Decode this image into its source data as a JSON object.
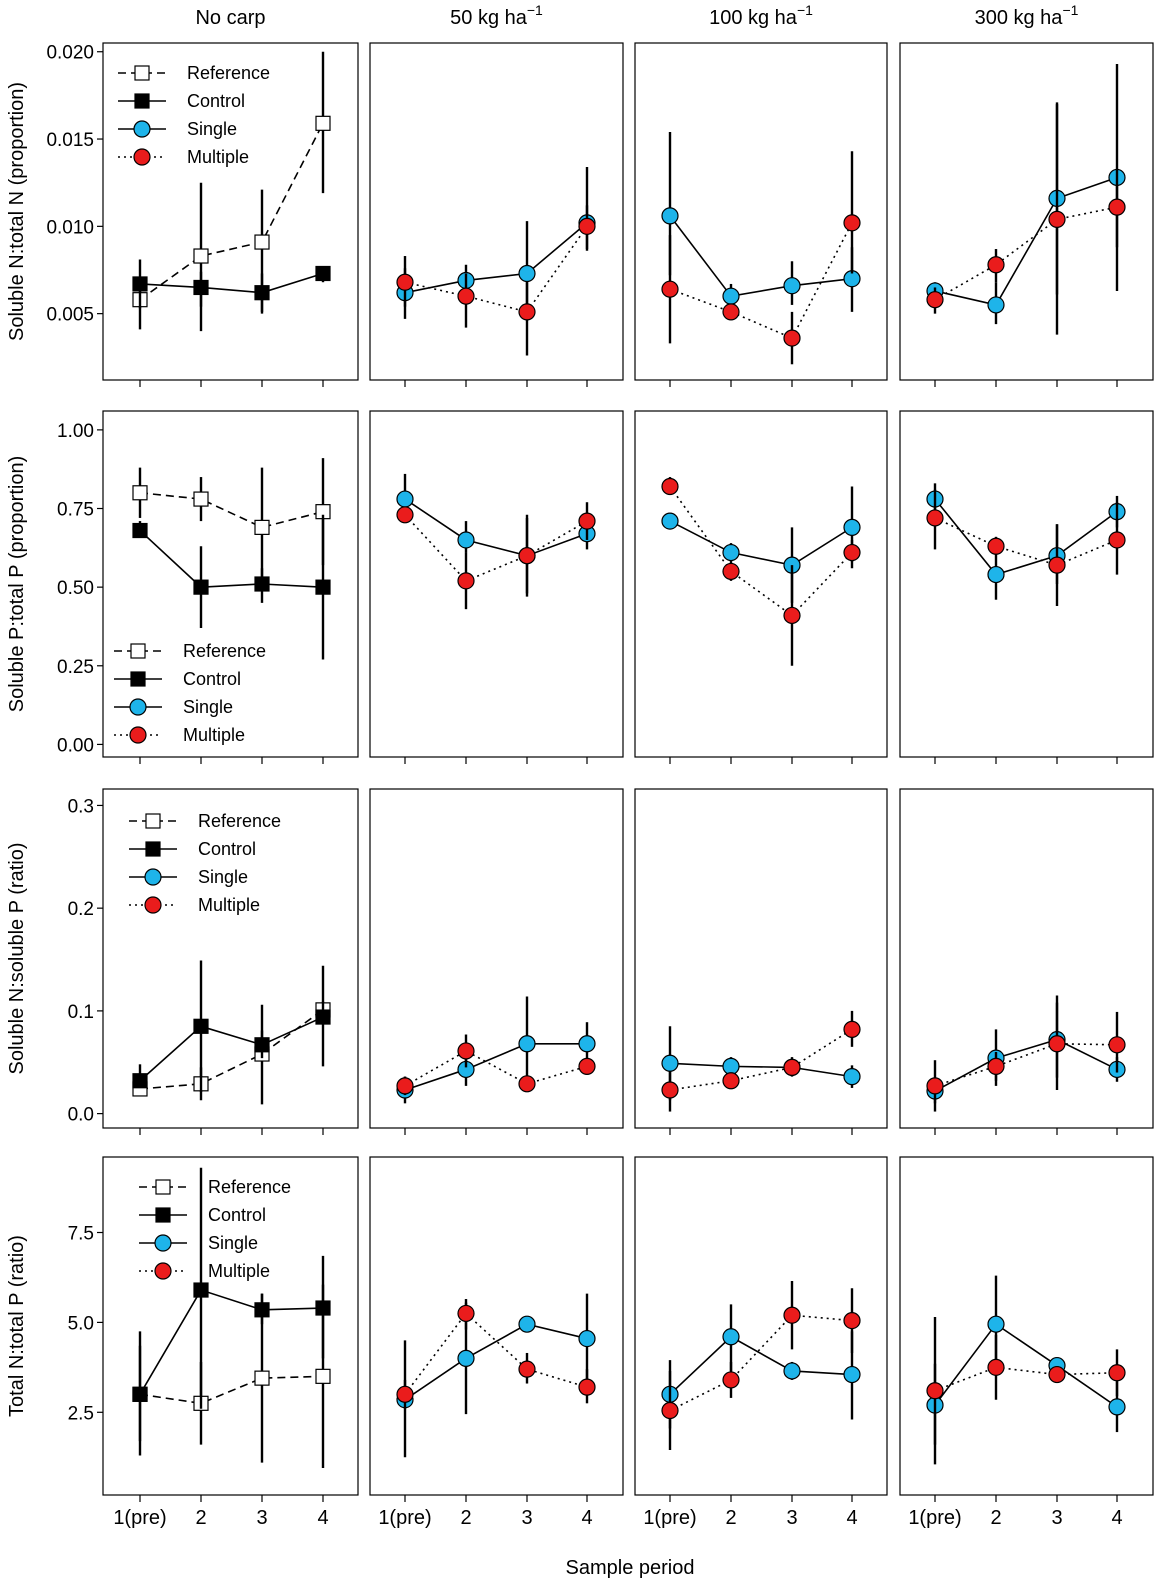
{
  "figure": {
    "xlabel": "Sample period",
    "x_categories": [
      "1(pre)",
      "2",
      "3",
      "4"
    ],
    "columns": [
      "No carp",
      "50 kg ha",
      "100 kg ha",
      "300 kg ha"
    ],
    "column_superscript": "−1",
    "legend": [
      "Reference",
      "Control",
      "Single",
      "Multiple"
    ]
  },
  "series_style": {
    "Reference": {
      "marker": "square",
      "fill": "#ffffff",
      "line": "dashed"
    },
    "Control": {
      "marker": "square",
      "fill": "#000000",
      "line": "solid"
    },
    "Single": {
      "marker": "circle",
      "fill": "#1eb4ea",
      "line": "solid"
    },
    "Multiple": {
      "marker": "circle",
      "fill": "#ea1c1c",
      "line": "dotted"
    }
  },
  "chart_data": [
    {
      "type": "line",
      "ylabel": "Soluble N:total N (proportion)",
      "ylim": [
        0.0012,
        0.0205
      ],
      "yticks": [
        0.005,
        0.01,
        0.015,
        0.02
      ],
      "ytick_labels": [
        "0.005",
        "0.010",
        "0.015",
        "0.020"
      ],
      "legend_position": "top-left",
      "panels": [
        {
          "column": "No carp",
          "series": [
            {
              "name": "Reference",
              "y": [
                0.0058,
                0.0083,
                0.0091,
                0.0159
              ],
              "low": [
                0.0053,
                0.004,
                0.005,
                0.0119
              ],
              "high": [
                0.007,
                0.0125,
                0.0121,
                0.02
              ]
            },
            {
              "name": "Control",
              "y": [
                0.0067,
                0.0065,
                0.0062,
                0.0073
              ],
              "low": [
                0.0041,
                0.0054,
                0.0051,
                0.0068
              ],
              "high": [
                0.0081,
                0.0074,
                0.0073,
                0.0077
              ]
            }
          ]
        },
        {
          "column": "50 kg ha",
          "series": [
            {
              "name": "Single",
              "y": [
                0.0062,
                0.0069,
                0.0073,
                0.0102
              ],
              "low": [
                0.0047,
                0.0061,
                0.0051,
                0.0086
              ],
              "high": [
                0.0076,
                0.0078,
                0.0103,
                0.0134
              ]
            },
            {
              "name": "Multiple",
              "y": [
                0.0068,
                0.006,
                0.0051,
                0.01
              ],
              "low": [
                0.0054,
                0.0042,
                0.0026,
                0.0087
              ],
              "high": [
                0.0083,
                0.0073,
                0.0068,
                0.0112
              ]
            }
          ]
        },
        {
          "column": "100 kg ha",
          "series": [
            {
              "name": "Single",
              "y": [
                0.0106,
                0.006,
                0.0066,
                0.007
              ],
              "low": [
                0.0072,
                0.0055,
                0.0055,
                0.0051
              ],
              "high": [
                0.0154,
                0.0067,
                0.008,
                0.0088
              ]
            },
            {
              "name": "Multiple",
              "y": [
                0.0064,
                0.0051,
                0.0036,
                0.0102
              ],
              "low": [
                0.0033,
                0.0047,
                0.0021,
                0.0073
              ],
              "high": [
                0.0095,
                0.0055,
                0.0051,
                0.0143
              ]
            }
          ]
        },
        {
          "column": "300 kg ha",
          "series": [
            {
              "name": "Single",
              "y": [
                0.0063,
                0.0055,
                0.0116,
                0.0128
              ],
              "low": [
                0.0055,
                0.0044,
                0.0061,
                0.0063
              ],
              "high": [
                0.0068,
                0.0068,
                0.017,
                0.0193
              ]
            },
            {
              "name": "Multiple",
              "y": [
                0.0058,
                0.0078,
                0.0104,
                0.0111
              ],
              "low": [
                0.005,
                0.0068,
                0.0038,
                0.0088
              ],
              "high": [
                0.0065,
                0.0087,
                0.0171,
                0.0133
              ]
            }
          ]
        }
      ]
    },
    {
      "type": "line",
      "ylabel": "Soluble P:total P (proportion)",
      "ylim": [
        -0.04,
        1.06
      ],
      "yticks": [
        0,
        0.25,
        0.5,
        0.75,
        1.0
      ],
      "ytick_labels": [
        "0.00",
        "0.25",
        "0.50",
        "0.75",
        "1.00"
      ],
      "legend_position": "bottom-left",
      "panels": [
        {
          "column": "No carp",
          "series": [
            {
              "name": "Reference",
              "y": [
                0.8,
                0.78,
                0.69,
                0.74
              ],
              "low": [
                0.72,
                0.71,
                0.51,
                0.57
              ],
              "high": [
                0.88,
                0.85,
                0.88,
                0.91
              ]
            },
            {
              "name": "Control",
              "y": [
                0.68,
                0.5,
                0.51,
                0.5
              ],
              "low": [
                0.66,
                0.37,
                0.45,
                0.27
              ],
              "high": [
                0.71,
                0.63,
                0.56,
                0.73
              ]
            }
          ]
        },
        {
          "column": "50 kg ha",
          "series": [
            {
              "name": "Single",
              "y": [
                0.78,
                0.65,
                0.6,
                0.67
              ],
              "low": [
                0.71,
                0.61,
                0.47,
                0.62
              ],
              "high": [
                0.86,
                0.71,
                0.72,
                0.72
              ]
            },
            {
              "name": "Multiple",
              "y": [
                0.73,
                0.52,
                0.6,
                0.71
              ],
              "low": [
                0.71,
                0.43,
                0.48,
                0.65
              ],
              "high": [
                0.75,
                0.61,
                0.73,
                0.77
              ]
            }
          ]
        },
        {
          "column": "100 kg ha",
          "series": [
            {
              "name": "Single",
              "y": [
                0.71,
                0.61,
                0.57,
                0.69
              ],
              "low": [
                0.71,
                0.58,
                0.45,
                0.56
              ],
              "high": [
                0.71,
                0.64,
                0.69,
                0.82
              ]
            },
            {
              "name": "Multiple",
              "y": [
                0.82,
                0.55,
                0.41,
                0.61
              ],
              "low": [
                0.8,
                0.52,
                0.25,
                0.58
              ],
              "high": [
                0.85,
                0.58,
                0.57,
                0.65
              ]
            }
          ]
        },
        {
          "column": "300 kg ha",
          "series": [
            {
              "name": "Single",
              "y": [
                0.78,
                0.54,
                0.6,
                0.74
              ],
              "low": [
                0.72,
                0.46,
                0.51,
                0.69
              ],
              "high": [
                0.83,
                0.61,
                0.7,
                0.79
              ]
            },
            {
              "name": "Multiple",
              "y": [
                0.72,
                0.63,
                0.57,
                0.65
              ],
              "low": [
                0.62,
                0.61,
                0.44,
                0.54
              ],
              "high": [
                0.81,
                0.66,
                0.7,
                0.77
              ]
            }
          ]
        }
      ]
    },
    {
      "type": "line",
      "ylabel": "Soluble N:soluble P (ratio)",
      "ylim": [
        -0.014,
        0.316
      ],
      "yticks": [
        0,
        0.1,
        0.2,
        0.3
      ],
      "ytick_labels": [
        "0.0",
        "0.1",
        "0.2",
        "0.3"
      ],
      "legend_position": "top-left",
      "panels": [
        {
          "column": "No carp",
          "series": [
            {
              "name": "Reference",
              "y": [
                0.024,
                0.029,
                0.058,
                0.101
              ],
              "low": [
                0.019,
                0.013,
                0.009,
                0.094
              ],
              "high": [
                0.03,
                0.045,
                0.106,
                0.109
              ]
            },
            {
              "name": "Control",
              "y": [
                0.032,
                0.085,
                0.067,
                0.094
              ],
              "low": [
                0.025,
                0.021,
                0.054,
                0.046
              ],
              "high": [
                0.048,
                0.149,
                0.081,
                0.144
              ]
            }
          ]
        },
        {
          "column": "50 kg ha",
          "series": [
            {
              "name": "Single",
              "y": [
                0.023,
                0.043,
                0.068,
                0.068
              ],
              "low": [
                0.01,
                0.027,
                0.023,
                0.048
              ],
              "high": [
                0.036,
                0.06,
                0.114,
                0.089
              ]
            },
            {
              "name": "Multiple",
              "y": [
                0.027,
                0.061,
                0.029,
                0.046
              ],
              "low": [
                0.018,
                0.045,
                0.029,
                0.046
              ],
              "high": [
                0.036,
                0.077,
                0.029,
                0.046
              ]
            }
          ]
        },
        {
          "column": "100 kg ha",
          "series": [
            {
              "name": "Single",
              "y": [
                0.049,
                0.046,
                0.045,
                0.036
              ],
              "low": [
                0.013,
                0.038,
                0.036,
                0.025
              ],
              "high": [
                0.085,
                0.055,
                0.055,
                0.047
              ]
            },
            {
              "name": "Multiple",
              "y": [
                0.023,
                0.032,
                0.045,
                0.082
              ],
              "low": [
                0.002,
                0.027,
                0.038,
                0.065
              ],
              "high": [
                0.041,
                0.037,
                0.053,
                0.1
              ]
            }
          ]
        },
        {
          "column": "300 kg ha",
          "series": [
            {
              "name": "Single",
              "y": [
                0.022,
                0.054,
                0.072,
                0.043
              ],
              "low": [
                0.01,
                0.027,
                0.035,
                0.031
              ],
              "high": [
                0.035,
                0.082,
                0.108,
                0.055
              ]
            },
            {
              "name": "Multiple",
              "y": [
                0.027,
                0.046,
                0.068,
                0.067
              ],
              "low": [
                0.002,
                0.032,
                0.023,
                0.04
              ],
              "high": [
                0.052,
                0.06,
                0.115,
                0.099
              ]
            }
          ]
        }
      ]
    },
    {
      "type": "line",
      "ylabel": "Total N:total P (ratio)",
      "ylim": [
        0.2,
        9.6
      ],
      "yticks": [
        2.5,
        5.0,
        7.5
      ],
      "ytick_labels": [
        "2.5",
        "5.0",
        "7.5"
      ],
      "legend_position": "top-left",
      "panels": [
        {
          "column": "No carp",
          "series": [
            {
              "name": "Reference",
              "y": [
                3.0,
                2.75,
                3.45,
                3.5
              ],
              "low": [
                1.3,
                1.6,
                1.1,
                0.95
              ],
              "high": [
                4.75,
                3.9,
                5.8,
                6.05
              ]
            },
            {
              "name": "Control",
              "y": [
                3.0,
                5.9,
                5.35,
                5.4
              ],
              "low": [
                1.7,
                2.6,
                4.95,
                4.0
              ],
              "high": [
                4.35,
                9.3,
                5.8,
                6.85
              ]
            }
          ]
        },
        {
          "column": "50 kg ha",
          "series": [
            {
              "name": "Single",
              "y": [
                2.85,
                4.0,
                4.95,
                4.55
              ],
              "low": [
                1.25,
                2.45,
                4.8,
                3.3
              ],
              "high": [
                4.5,
                5.55,
                5.1,
                5.8
              ]
            },
            {
              "name": "Multiple",
              "y": [
                3.0,
                5.25,
                3.7,
                3.2
              ],
              "low": [
                2.6,
                4.8,
                3.3,
                2.75
              ],
              "high": [
                3.4,
                5.65,
                4.15,
                3.7
              ]
            }
          ]
        },
        {
          "column": "100 kg ha",
          "series": [
            {
              "name": "Single",
              "y": [
                3.0,
                4.6,
                3.65,
                3.55
              ],
              "low": [
                2.05,
                3.65,
                3.4,
                2.3
              ],
              "high": [
                3.95,
                5.5,
                3.9,
                4.75
              ]
            },
            {
              "name": "Multiple",
              "y": [
                2.55,
                3.4,
                5.2,
                5.05
              ],
              "low": [
                1.45,
                2.9,
                4.25,
                4.15
              ],
              "high": [
                3.65,
                3.9,
                6.15,
                5.95
              ]
            }
          ]
        },
        {
          "column": "300 kg ha",
          "series": [
            {
              "name": "Single",
              "y": [
                2.7,
                4.95,
                3.8,
                2.65
              ],
              "low": [
                1.6,
                3.65,
                3.65,
                1.95
              ],
              "high": [
                3.85,
                6.3,
                3.95,
                3.35
              ]
            },
            {
              "name": "Multiple",
              "y": [
                3.1,
                3.75,
                3.55,
                3.6
              ],
              "low": [
                1.05,
                2.85,
                3.4,
                2.95
              ],
              "high": [
                5.15,
                4.65,
                3.7,
                4.25
              ]
            }
          ]
        }
      ]
    }
  ]
}
